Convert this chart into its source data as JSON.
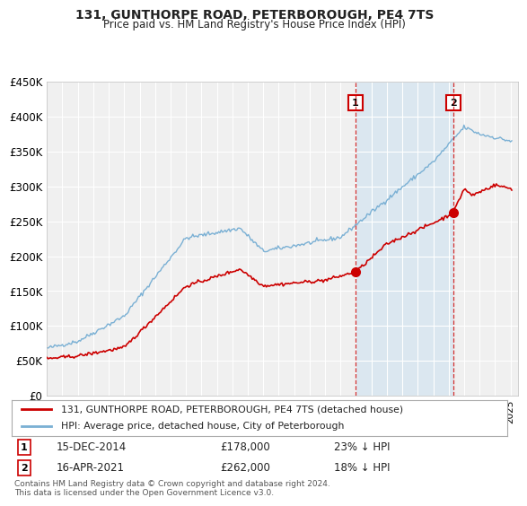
{
  "title": "131, GUNTHORPE ROAD, PETERBOROUGH, PE4 7TS",
  "subtitle": "Price paid vs. HM Land Registry's House Price Index (HPI)",
  "ylabel_ticks": [
    "£0",
    "£50K",
    "£100K",
    "£150K",
    "£200K",
    "£250K",
    "£300K",
    "£350K",
    "£400K",
    "£450K"
  ],
  "ylim": [
    0,
    450000
  ],
  "xlim_start": 1995.0,
  "xlim_end": 2025.5,
  "background_color": "#ffffff",
  "plot_bg_color": "#f0f0f0",
  "grid_color": "#ffffff",
  "hpi_color": "#7ab0d4",
  "price_color": "#cc0000",
  "marker1_date": 2014.96,
  "marker1_price": 178000,
  "marker2_date": 2021.29,
  "marker2_price": 262000,
  "legend_line1": "131, GUNTHORPE ROAD, PETERBOROUGH, PE4 7TS (detached house)",
  "legend_line2": "HPI: Average price, detached house, City of Peterborough",
  "footer": "Contains HM Land Registry data © Crown copyright and database right 2024.\nThis data is licensed under the Open Government Licence v3.0."
}
